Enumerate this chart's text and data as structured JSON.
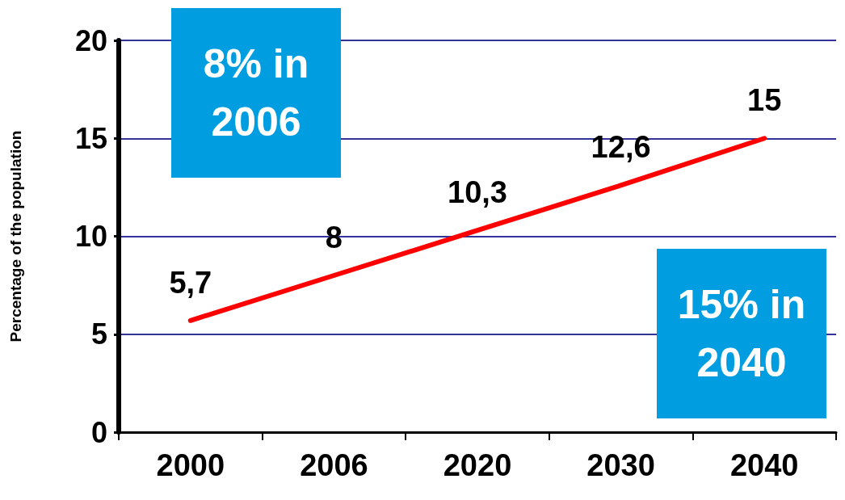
{
  "chart_data": {
    "type": "line",
    "ylabel": "Percentage of the population",
    "categories": [
      "2000",
      "2006",
      "2020",
      "2030",
      "2040"
    ],
    "series": [
      {
        "color": "#ff0000",
        "values": [
          5.7,
          8,
          10.3,
          12.6,
          15
        ],
        "value_labels": [
          "5,7",
          "8",
          "10,3",
          "12,6",
          "15"
        ]
      }
    ],
    "ylim": [
      0,
      20
    ],
    "yticks": [
      0,
      5,
      10,
      15,
      20
    ],
    "grid": "y",
    "marker": "none",
    "annotations": [
      "8% in 2006",
      "15% in 2040"
    ]
  }
}
